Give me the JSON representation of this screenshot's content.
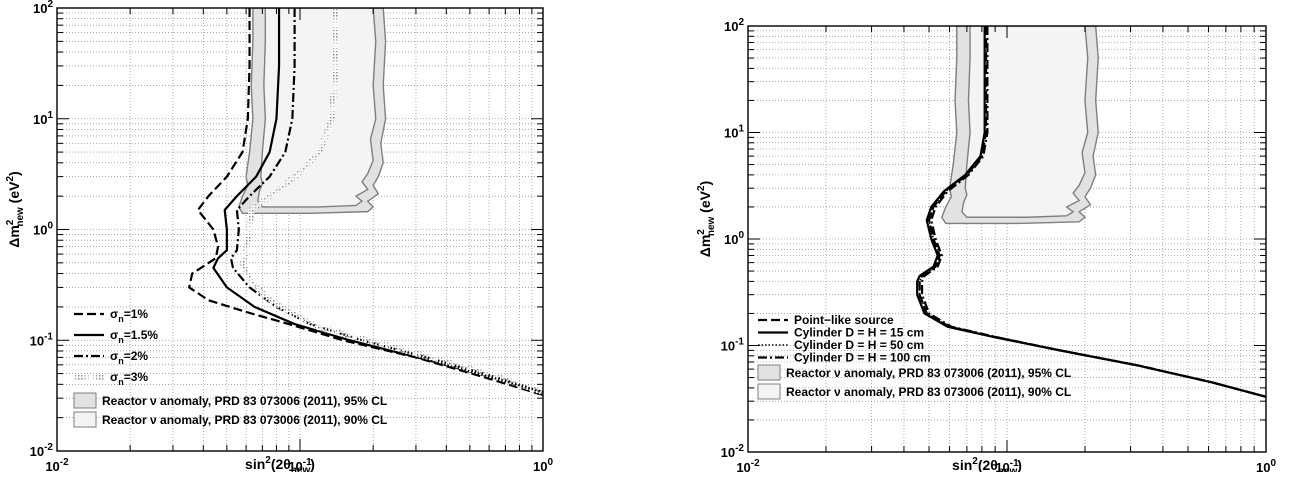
{
  "chart_data": [
    {
      "type": "line",
      "xscale": "log",
      "yscale": "log",
      "xlim": [
        0.01,
        1
      ],
      "ylim": [
        0.01,
        100
      ],
      "grid": true,
      "legend_position": "bottom-left",
      "xlabel": {
        "main": "sin",
        "sup": "2",
        "paren": "(2θ",
        "sub": "new",
        "close": ")"
      },
      "ylabel": {
        "main": "Δm",
        "sup": "2",
        "sub": "new",
        "unit": " (eV",
        "unit_sup": "2",
        "close": ")"
      },
      "xticks": [
        {
          "value": 0.01,
          "base": "10",
          "exp": "-2"
        },
        {
          "value": 0.1,
          "base": "10",
          "exp": "-1"
        },
        {
          "value": 1,
          "base": "10",
          "exp": "0"
        }
      ],
      "yticks": [
        {
          "value": 0.01,
          "base": "10",
          "exp": "-2"
        },
        {
          "value": 0.1,
          "base": "10",
          "exp": "-1"
        },
        {
          "value": 1,
          "base": "10",
          "exp": "0"
        },
        {
          "value": 10,
          "base": "10",
          "exp": "1"
        },
        {
          "value": 100,
          "base": "10",
          "exp": "2"
        }
      ],
      "series": [
        {
          "name": "σn=1%",
          "label_main": "σ",
          "label_sub": "n",
          "label_rest": "=1%",
          "style": "dashed",
          "color": "#000000",
          "x": [
            0.062,
            0.062,
            0.061,
            0.058,
            0.05,
            0.042,
            0.038,
            0.044,
            0.046,
            0.045,
            0.036,
            0.035,
            0.042,
            0.06,
            0.09,
            0.15,
            0.3,
            0.6,
            1.0
          ],
          "y": [
            100,
            30,
            10,
            5,
            3,
            2,
            1.5,
            1.0,
            0.7,
            0.55,
            0.4,
            0.3,
            0.23,
            0.18,
            0.14,
            0.1,
            0.07,
            0.045,
            0.032
          ]
        },
        {
          "name": "σn=1.5%",
          "label_main": "σ",
          "label_sub": "n",
          "label_rest": "=1.5%",
          "style": "solid",
          "color": "#000000",
          "x": [
            0.082,
            0.082,
            0.08,
            0.075,
            0.066,
            0.055,
            0.049,
            0.05,
            0.05,
            0.046,
            0.044,
            0.05,
            0.065,
            0.095,
            0.16,
            0.32,
            0.62,
            1.0
          ],
          "y": [
            100,
            30,
            10,
            5,
            3,
            2,
            1.5,
            1.0,
            0.65,
            0.55,
            0.45,
            0.3,
            0.2,
            0.14,
            0.1,
            0.068,
            0.046,
            0.034
          ]
        },
        {
          "name": "σn=2%",
          "label_main": "σ",
          "label_sub": "n",
          "label_rest": "=2%",
          "style": "dash-dot",
          "color": "#000000",
          "x": [
            0.095,
            0.095,
            0.093,
            0.087,
            0.075,
            0.062,
            0.055,
            0.056,
            0.055,
            0.052,
            0.053,
            0.062,
            0.08,
            0.11,
            0.18,
            0.35,
            0.65,
            1.0
          ],
          "y": [
            100,
            30,
            10,
            5,
            3,
            2,
            1.5,
            1.0,
            0.65,
            0.55,
            0.45,
            0.3,
            0.2,
            0.14,
            0.1,
            0.068,
            0.046,
            0.034
          ]
        },
        {
          "name": "σn=3%",
          "label_main": "σ",
          "label_sub": "n",
          "label_rest": "=3%",
          "style": "hatched",
          "color": "#8c8c8c",
          "x": [
            0.14,
            0.14,
            0.135,
            0.12,
            0.095,
            0.075,
            0.063,
            0.062,
            0.06,
            0.058,
            0.062,
            0.072,
            0.09,
            0.12,
            0.19,
            0.36,
            0.66,
            1.0
          ],
          "y": [
            100,
            30,
            10,
            5,
            3,
            2,
            1.5,
            1.0,
            0.65,
            0.5,
            0.35,
            0.25,
            0.18,
            0.13,
            0.1,
            0.068,
            0.046,
            0.034
          ]
        }
      ],
      "regions": [
        {
          "name": "Reactor ν anomaly, PRD 83 073006 (2011), 95% CL",
          "fill": "#e2e2e2",
          "edge": "#7f7f7f",
          "x": [
            0.064,
            0.064,
            0.063,
            0.064,
            0.062,
            0.06,
            0.061,
            0.058,
            0.056,
            0.058,
            0.11,
            0.19,
            0.2,
            0.19,
            0.21,
            0.2,
            0.21,
            0.22,
            0.215,
            0.225,
            0.22,
            0.225,
            0.22
          ],
          "y": [
            100,
            50,
            20,
            10,
            5,
            3,
            2.5,
            2.0,
            1.6,
            1.4,
            1.4,
            1.45,
            1.6,
            1.8,
            2.1,
            2.5,
            3,
            4,
            6,
            10,
            20,
            50,
            100
          ]
        },
        {
          "name": "Reactor ν anomaly, PRD 83 073006 (2011), 90% CL",
          "fill": "#f4f4f4",
          "edge": "#7f7f7f",
          "x": [
            0.072,
            0.072,
            0.071,
            0.072,
            0.07,
            0.069,
            0.07,
            0.068,
            0.067,
            0.07,
            0.12,
            0.17,
            0.18,
            0.17,
            0.19,
            0.18,
            0.19,
            0.2,
            0.195,
            0.205,
            0.2,
            0.205,
            0.2
          ],
          "y": [
            100,
            50,
            20,
            10,
            5,
            3,
            2.6,
            2.2,
            1.8,
            1.6,
            1.6,
            1.65,
            1.8,
            2.0,
            2.3,
            2.7,
            3.2,
            4.2,
            6.5,
            10,
            20,
            50,
            100
          ]
        }
      ],
      "legend_entries": [
        {
          "key": "σn=1%"
        },
        {
          "key": "σn=1.5%"
        },
        {
          "key": "σn=2%"
        },
        {
          "key": "σn=3%"
        },
        {
          "key": "Reactor ν anomaly, PRD 83 073006 (2011), 95% CL",
          "text": "Reactor ν anomaly, PRD 83 073006 (2011), 95% CL"
        },
        {
          "key": "Reactor ν anomaly, PRD 83 073006 (2011), 90% CL",
          "text": "Reactor ν anomaly, PRD 83 073006 (2011), 90% CL"
        }
      ]
    },
    {
      "type": "line",
      "xscale": "log",
      "yscale": "log",
      "xlim": [
        0.01,
        1
      ],
      "ylim": [
        0.01,
        100
      ],
      "grid": true,
      "legend_position": "bottom-left",
      "xlabel": {
        "main": "sin",
        "sup": "2",
        "paren": "(2θ",
        "sub": "new",
        "close": ")"
      },
      "ylabel": {
        "main": "Δm",
        "sup": "2",
        "sub": "new",
        "unit": " (eV",
        "unit_sup": "2",
        "close": ")"
      },
      "xticks": [
        {
          "value": 0.01,
          "base": "10",
          "exp": "-2"
        },
        {
          "value": 0.1,
          "base": "10",
          "exp": "-1"
        },
        {
          "value": 1,
          "base": "10",
          "exp": "0"
        }
      ],
      "yticks": [
        {
          "value": 0.01,
          "base": "10",
          "exp": "-2"
        },
        {
          "value": 0.1,
          "base": "10",
          "exp": "-1"
        },
        {
          "value": 1,
          "base": "10",
          "exp": "0"
        },
        {
          "value": 10,
          "base": "10",
          "exp": "1"
        },
        {
          "value": 100,
          "base": "10",
          "exp": "2"
        }
      ],
      "series": [
        {
          "name": "Point−like source",
          "label_main": "Point−like source",
          "style": "dashed",
          "color": "#000000",
          "x": [
            0.083,
            0.083,
            0.083,
            0.08,
            0.07,
            0.058,
            0.052,
            0.05,
            0.052,
            0.055,
            0.053,
            0.05,
            0.047,
            0.046,
            0.046,
            0.049,
            0.06,
            0.09,
            0.16,
            0.32,
            0.62,
            1.0
          ],
          "y": [
            100,
            30,
            10,
            6,
            4,
            2.8,
            2.0,
            1.5,
            1.0,
            0.7,
            0.55,
            0.5,
            0.45,
            0.4,
            0.3,
            0.2,
            0.15,
            0.12,
            0.09,
            0.065,
            0.045,
            0.033
          ]
        },
        {
          "name": "Cylinder D = H = 15 cm",
          "label_main": "Cylinder D = H = 15 cm",
          "style": "solid",
          "color": "#000000",
          "x": [
            0.082,
            0.082,
            0.082,
            0.079,
            0.069,
            0.057,
            0.051,
            0.049,
            0.051,
            0.054,
            0.052,
            0.049,
            0.046,
            0.045,
            0.045,
            0.048,
            0.059,
            0.089,
            0.16,
            0.32,
            0.62,
            1.0
          ],
          "y": [
            100,
            30,
            10,
            6,
            4,
            2.8,
            2.0,
            1.5,
            1.0,
            0.7,
            0.55,
            0.5,
            0.45,
            0.4,
            0.3,
            0.2,
            0.15,
            0.12,
            0.09,
            0.065,
            0.045,
            0.033
          ]
        },
        {
          "name": "Cylinder D = H = 50 cm",
          "label_main": "Cylinder D = H = 50 cm",
          "style": "dotted",
          "color": "#000000",
          "x": [
            0.082,
            0.082,
            0.082,
            0.08,
            0.07,
            0.058,
            0.052,
            0.05,
            0.052,
            0.055,
            0.053,
            0.05,
            0.047,
            0.046,
            0.046,
            0.049,
            0.06,
            0.09,
            0.16,
            0.32,
            0.62,
            1.0
          ],
          "y": [
            100,
            30,
            10,
            6,
            4,
            2.8,
            2.0,
            1.5,
            1.0,
            0.7,
            0.55,
            0.5,
            0.45,
            0.4,
            0.3,
            0.2,
            0.15,
            0.12,
            0.09,
            0.065,
            0.045,
            0.033
          ]
        },
        {
          "name": "Cylinder D = H = 100 cm",
          "label_main": "Cylinder D = H = 100 cm",
          "style": "dash-dot",
          "color": "#000000",
          "x": [
            0.084,
            0.084,
            0.084,
            0.081,
            0.071,
            0.059,
            0.053,
            0.051,
            0.053,
            0.056,
            0.054,
            0.051,
            0.048,
            0.047,
            0.047,
            0.05,
            0.061,
            0.091,
            0.16,
            0.32,
            0.62,
            1.0
          ],
          "y": [
            100,
            30,
            10,
            6,
            4,
            2.8,
            2.0,
            1.5,
            1.0,
            0.7,
            0.55,
            0.5,
            0.45,
            0.4,
            0.3,
            0.2,
            0.15,
            0.12,
            0.09,
            0.065,
            0.045,
            0.033
          ]
        }
      ],
      "regions": [
        {
          "name": "Reactor ν anomaly, PRD 83 073006 (2011), 95% CL",
          "fill": "#e2e2e2",
          "edge": "#7f7f7f",
          "x": [
            0.064,
            0.064,
            0.063,
            0.064,
            0.062,
            0.06,
            0.061,
            0.058,
            0.056,
            0.058,
            0.11,
            0.19,
            0.2,
            0.19,
            0.21,
            0.2,
            0.21,
            0.22,
            0.215,
            0.225,
            0.22,
            0.225,
            0.22
          ],
          "y": [
            100,
            50,
            20,
            10,
            5,
            3,
            2.5,
            2.0,
            1.6,
            1.4,
            1.4,
            1.45,
            1.6,
            1.8,
            2.1,
            2.5,
            3,
            4,
            6,
            10,
            20,
            50,
            100
          ]
        },
        {
          "name": "Reactor ν anomaly, PRD 83 073006 (2011), 90% CL",
          "fill": "#f4f4f4",
          "edge": "#7f7f7f",
          "x": [
            0.072,
            0.072,
            0.071,
            0.072,
            0.07,
            0.069,
            0.07,
            0.068,
            0.067,
            0.07,
            0.12,
            0.17,
            0.18,
            0.17,
            0.19,
            0.18,
            0.19,
            0.2,
            0.195,
            0.205,
            0.2,
            0.205,
            0.2
          ],
          "y": [
            100,
            50,
            20,
            10,
            5,
            3,
            2.6,
            2.2,
            1.8,
            1.6,
            1.6,
            1.65,
            1.8,
            2.0,
            2.3,
            2.7,
            3.2,
            4.2,
            6.5,
            10,
            20,
            50,
            100
          ]
        }
      ],
      "legend_entries": [
        {
          "key": "Point−like source"
        },
        {
          "key": "Cylinder D = H = 15 cm"
        },
        {
          "key": "Cylinder D = H = 50 cm"
        },
        {
          "key": "Cylinder D = H = 100 cm"
        },
        {
          "key": "Reactor ν anomaly, PRD 83 073006 (2011), 95% CL",
          "text": "Reactor ν anomaly, PRD 83 073006 (2011), 95% CL"
        },
        {
          "key": "Reactor ν anomaly, PRD 83 073006 (2011), 90% CL",
          "text": "Reactor ν anomaly, PRD 83 073006 (2011), 90% CL"
        }
      ]
    }
  ]
}
